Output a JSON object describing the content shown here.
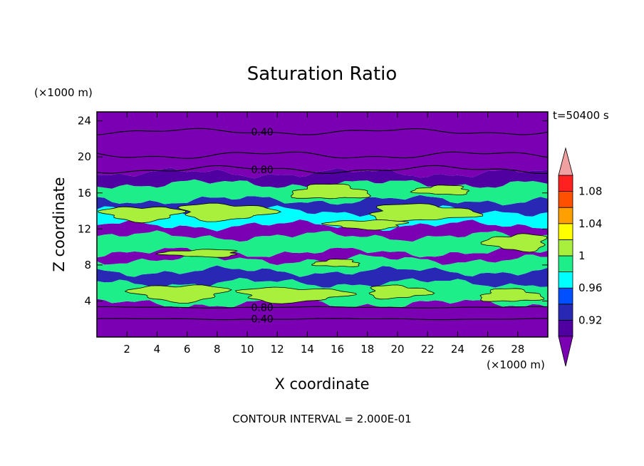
{
  "chart_data": {
    "type": "heatmap",
    "title": "Saturation Ratio",
    "xlabel": "X coordinate",
    "ylabel": "Z coordinate",
    "x_unit": "(×1000 m)",
    "y_unit": "(×1000 m)",
    "time_label": "t=50400 s",
    "footer": "CONTOUR INTERVAL = 2.000E-01",
    "xlim": [
      0,
      30
    ],
    "ylim": [
      0,
      25
    ],
    "x_ticks": [
      2,
      4,
      6,
      8,
      10,
      12,
      14,
      16,
      18,
      20,
      22,
      24,
      26,
      28
    ],
    "y_ticks": [
      4,
      8,
      12,
      16,
      20,
      24
    ],
    "grid": false,
    "colorbar": {
      "position": "right",
      "levels": [
        0.9,
        0.92,
        0.94,
        0.96,
        0.98,
        1.0,
        1.02,
        1.04,
        1.06,
        1.08,
        1.1
      ],
      "labels": [
        "0.92",
        "0.96",
        "1",
        "1.04",
        "1.08"
      ],
      "label_values": [
        0.92,
        0.96,
        1.0,
        1.04,
        1.08
      ],
      "colors": [
        "#5000a0",
        "#2828b4",
        "#0050ff",
        "#00ffff",
        "#1eee8a",
        "#a8f03c",
        "#ffff00",
        "#ffa000",
        "#ff5000",
        "#ff2020"
      ],
      "under_color": "#7b00b4",
      "over_color": "#f0a0a0"
    },
    "contour_labels": [
      {
        "text": "0.40",
        "x": 11.0,
        "y": 22.8
      },
      {
        "text": "0.80",
        "x": 11.0,
        "y": 18.6
      },
      {
        "text": "0.80",
        "x": 11.0,
        "y": 3.3
      },
      {
        "text": "0.40",
        "x": 11.0,
        "y": 2.0
      }
    ],
    "bands": [
      {
        "z_lo": 0,
        "z_hi": 3.7,
        "value": 0.5
      },
      {
        "z_lo": 3.7,
        "z_hi": 6.0,
        "value": 0.99
      },
      {
        "z_lo": 6.0,
        "z_hi": 7.3,
        "value": 0.93
      },
      {
        "z_lo": 7.3,
        "z_hi": 8.6,
        "value": 0.99
      },
      {
        "z_lo": 8.6,
        "z_hi": 9.4,
        "value": 0.88
      },
      {
        "z_lo": 9.4,
        "z_hi": 11.2,
        "value": 0.985
      },
      {
        "z_lo": 11.2,
        "z_hi": 12.4,
        "value": 0.87
      },
      {
        "z_lo": 12.4,
        "z_hi": 14.0,
        "value": 0.975
      },
      {
        "z_lo": 14.0,
        "z_hi": 15.2,
        "value": 0.93
      },
      {
        "z_lo": 15.2,
        "z_hi": 17.0,
        "value": 0.985
      },
      {
        "z_lo": 17.0,
        "z_hi": 18.2,
        "value": 0.91
      },
      {
        "z_lo": 18.2,
        "z_hi": 25.0,
        "value": 0.6
      }
    ],
    "moist_patches": [
      {
        "x": 3.0,
        "z": 13.7,
        "rx": 2.5,
        "rz": 0.8,
        "value": 1.01
      },
      {
        "x": 8.5,
        "z": 13.9,
        "rx": 3.0,
        "rz": 0.9,
        "value": 1.01
      },
      {
        "x": 21.5,
        "z": 13.8,
        "rx": 3.5,
        "rz": 0.9,
        "value": 1.01
      },
      {
        "x": 15.5,
        "z": 16.1,
        "rx": 2.5,
        "rz": 0.8,
        "value": 1.01
      },
      {
        "x": 23.0,
        "z": 16.3,
        "rx": 1.8,
        "rz": 0.5,
        "value": 1.01
      },
      {
        "x": 28.0,
        "z": 10.5,
        "rx": 2.0,
        "rz": 0.9,
        "value": 1.01
      },
      {
        "x": 5.5,
        "z": 4.9,
        "rx": 3.0,
        "rz": 0.9,
        "value": 1.01
      },
      {
        "x": 13.0,
        "z": 4.7,
        "rx": 3.5,
        "rz": 0.8,
        "value": 1.01
      },
      {
        "x": 20.0,
        "z": 5.0,
        "rx": 2.0,
        "rz": 0.7,
        "value": 1.01
      },
      {
        "x": 27.5,
        "z": 4.6,
        "rx": 2.0,
        "rz": 0.7,
        "value": 1.01
      },
      {
        "x": 16.0,
        "z": 8.2,
        "rx": 1.5,
        "rz": 0.4,
        "value": 1.01
      },
      {
        "x": 7.0,
        "z": 9.3,
        "rx": 2.5,
        "rz": 0.4,
        "value": 1.01
      },
      {
        "x": 18.0,
        "z": 12.5,
        "rx": 2.5,
        "rz": 0.5,
        "value": 1.01
      }
    ]
  }
}
